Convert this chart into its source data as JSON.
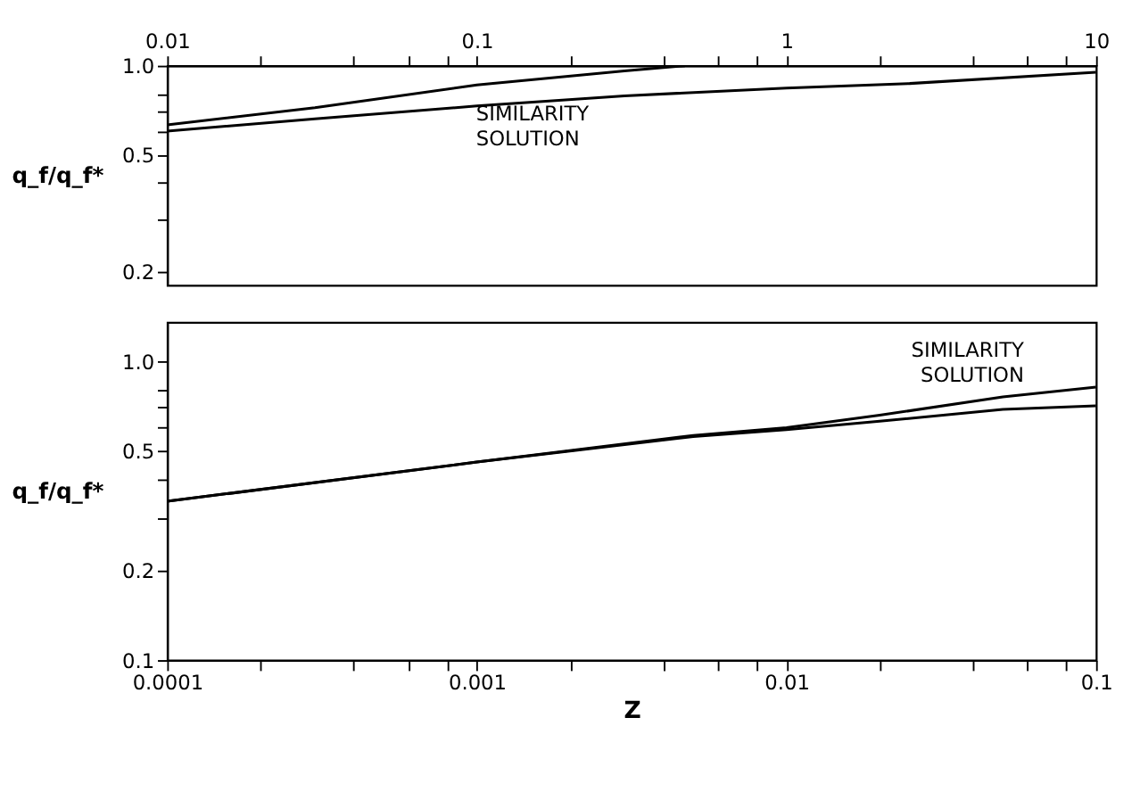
{
  "chart_data": [
    {
      "type": "line",
      "ylabel": "q_f/q_f*",
      "xlim": [
        0.01,
        10
      ],
      "ylim": [
        0.18,
        1.0
      ],
      "log": "xy",
      "grid": false,
      "legend": false,
      "xticks": [
        {
          "value": 0.01,
          "label": "0.01"
        },
        {
          "value": 0.02,
          "label": null
        },
        {
          "value": 0.04,
          "label": null
        },
        {
          "value": 0.06,
          "label": null
        },
        {
          "value": 0.08,
          "label": null
        },
        {
          "value": 0.1,
          "label": "0.1"
        },
        {
          "value": 0.2,
          "label": null
        },
        {
          "value": 0.4,
          "label": null
        },
        {
          "value": 0.6,
          "label": null
        },
        {
          "value": 0.8,
          "label": null
        },
        {
          "value": 1,
          "label": "1"
        },
        {
          "value": 2,
          "label": null
        },
        {
          "value": 4,
          "label": null
        },
        {
          "value": 6,
          "label": null
        },
        {
          "value": 8,
          "label": null
        },
        {
          "value": 10,
          "label": "10"
        }
      ],
      "yticks": [
        {
          "value": 1.0,
          "label": "1.0"
        },
        {
          "value": 0.8,
          "label": null
        },
        {
          "value": 0.7,
          "label": null
        },
        {
          "value": 0.6,
          "label": null
        },
        {
          "value": 0.5,
          "label": "0.5"
        },
        {
          "value": 0.4,
          "label": null
        },
        {
          "value": 0.3,
          "label": null
        },
        {
          "value": 0.2,
          "label": "0.2"
        }
      ],
      "series": [
        {
          "color": "#000000",
          "x": [
            0.01,
            0.03,
            0.1,
            0.3,
            0.47
          ],
          "values": [
            0.63,
            0.72,
            0.86,
            0.96,
            1.0
          ]
        },
        {
          "color": "#000000",
          "x": [
            0.01,
            0.03,
            0.1,
            0.3,
            1,
            2.5,
            10
          ],
          "values": [
            0.6,
            0.66,
            0.73,
            0.79,
            0.84,
            0.87,
            0.95
          ]
        }
      ],
      "annotations": [
        {
          "text": "SIMILARITY SOLUTION",
          "x": 0.09,
          "y": 0.86
        }
      ]
    },
    {
      "type": "line",
      "ylabel": "q_f/q_f*",
      "xlabel": "Z",
      "xlim": [
        0.0001,
        0.1
      ],
      "ylim": [
        0.1,
        1.35
      ],
      "log": "xy",
      "grid": false,
      "legend": false,
      "xticks": [
        {
          "value": 0.0001,
          "label": "0.0001"
        },
        {
          "value": 0.0002,
          "label": null
        },
        {
          "value": 0.0004,
          "label": null
        },
        {
          "value": 0.0006,
          "label": null
        },
        {
          "value": 0.0008,
          "label": null
        },
        {
          "value": 0.001,
          "label": "0.001"
        },
        {
          "value": 0.002,
          "label": null
        },
        {
          "value": 0.004,
          "label": null
        },
        {
          "value": 0.006,
          "label": null
        },
        {
          "value": 0.008,
          "label": null
        },
        {
          "value": 0.01,
          "label": "0.01"
        },
        {
          "value": 0.02,
          "label": null
        },
        {
          "value": 0.04,
          "label": null
        },
        {
          "value": 0.06,
          "label": null
        },
        {
          "value": 0.08,
          "label": null
        },
        {
          "value": 0.1,
          "label": "0.1"
        }
      ],
      "yticks": [
        {
          "value": 1.0,
          "label": "1.0"
        },
        {
          "value": 0.8,
          "label": null
        },
        {
          "value": 0.7,
          "label": null
        },
        {
          "value": 0.6,
          "label": null
        },
        {
          "value": 0.5,
          "label": "0.5"
        },
        {
          "value": 0.4,
          "label": null
        },
        {
          "value": 0.3,
          "label": null
        },
        {
          "value": 0.2,
          "label": "0.2"
        },
        {
          "value": 0.1,
          "label": "0.1"
        }
      ],
      "series": [
        {
          "color": "#000000",
          "x": [
            0.0001,
            0.001,
            0.005,
            0.01,
            0.02,
            0.05,
            0.1
          ],
          "values": [
            0.34,
            0.46,
            0.565,
            0.6,
            0.66,
            0.76,
            0.82
          ]
        },
        {
          "color": "#000000",
          "x": [
            0.0001,
            0.001,
            0.005,
            0.01,
            0.02,
            0.05,
            0.1
          ],
          "values": [
            0.34,
            0.46,
            0.56,
            0.59,
            0.63,
            0.69,
            0.71
          ]
        }
      ],
      "annotations": [
        {
          "text": "SIMILARITY SOLUTION",
          "x": 0.06,
          "y": 0.78
        }
      ]
    }
  ]
}
